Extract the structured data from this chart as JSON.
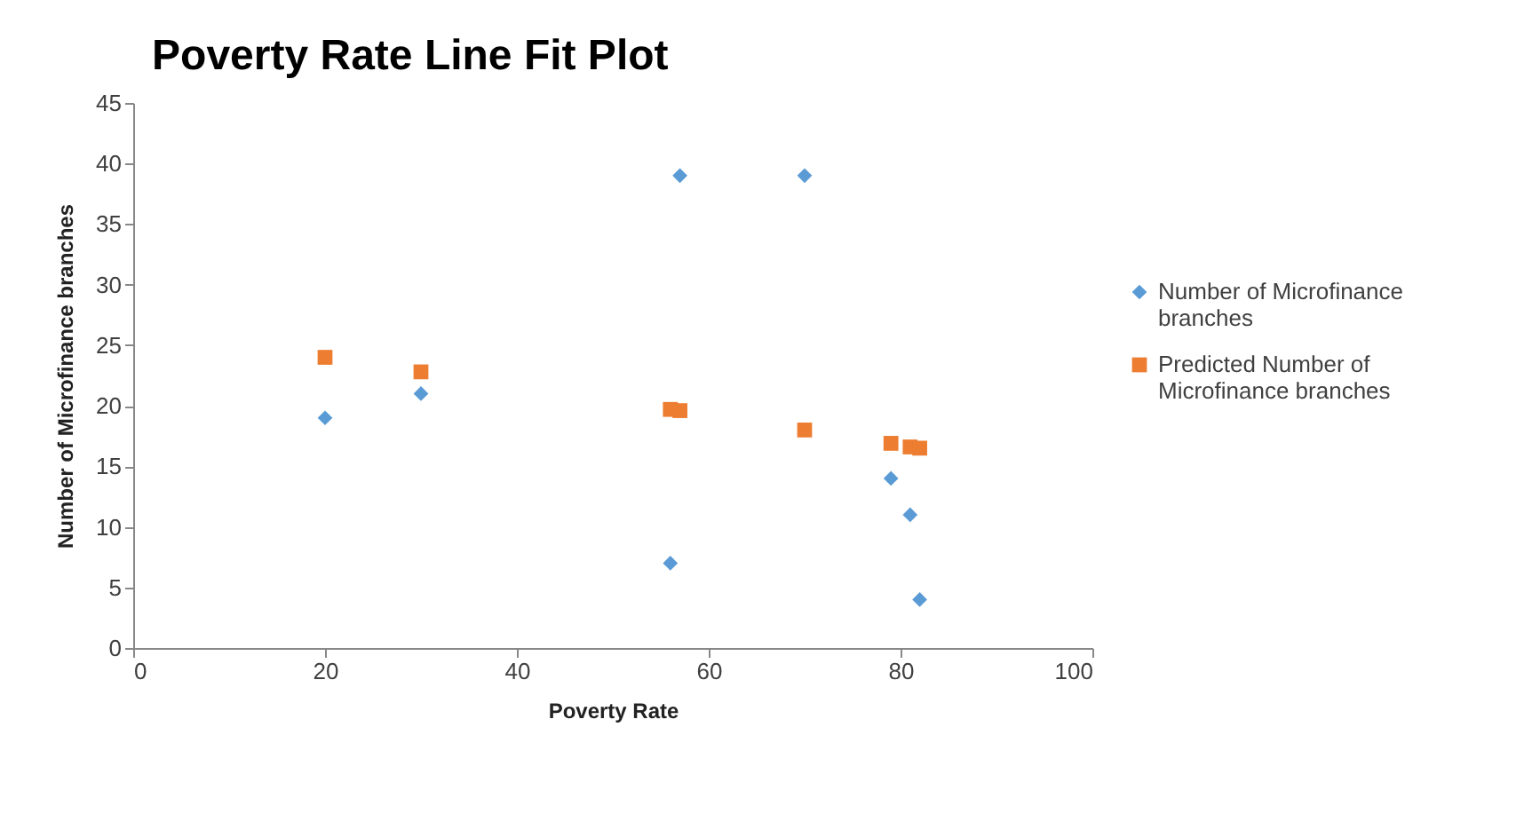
{
  "chart_data": {
    "type": "scatter",
    "title": "Poverty Rate Line Fit  Plot",
    "xlabel": "Poverty Rate",
    "ylabel": "Number of Microfinance branches",
    "x": [
      20,
      30,
      56,
      57,
      70,
      79,
      81,
      82
    ],
    "series": [
      {
        "name": "Number of Microfinance branches",
        "color": "#5b9bd5",
        "marker": "diamond",
        "values": [
          19,
          21,
          7,
          39,
          39,
          14,
          11,
          4
        ]
      },
      {
        "name": "Predicted Number of Microfinance branches",
        "color": "#ed7d31",
        "marker": "square",
        "values": [
          24,
          22.8,
          19.7,
          19.6,
          18,
          16.9,
          16.6,
          16.5
        ]
      }
    ],
    "xlim": [
      0,
      100
    ],
    "xticks": [
      0,
      20,
      40,
      60,
      80,
      100
    ],
    "ylim": [
      0,
      45
    ],
    "yticks": [
      0,
      5,
      10,
      15,
      20,
      25,
      30,
      35,
      40,
      45
    ],
    "grid": false,
    "legend": "right"
  }
}
